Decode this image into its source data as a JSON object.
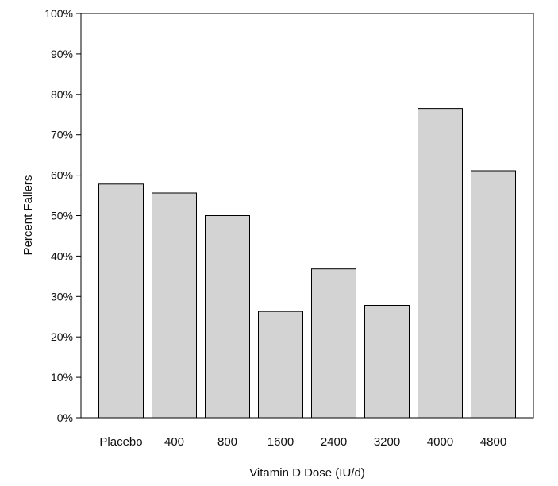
{
  "chart_data": {
    "type": "bar",
    "title": "",
    "xlabel": "Vitamin D Dose (IU/d)",
    "ylabel": "Percent Fallers",
    "categories": [
      "Placebo",
      "400",
      "800",
      "1600",
      "2400",
      "3200",
      "4000",
      "4800"
    ],
    "values": [
      57.8,
      55.6,
      50.0,
      26.3,
      36.8,
      27.8,
      76.5,
      61.1
    ],
    "value_unit": "%",
    "ylim": [
      0,
      100
    ],
    "yticks": [
      "0%",
      "10%",
      "20%",
      "30%",
      "40%",
      "50%",
      "60%",
      "70%",
      "80%",
      "90%",
      "100%"
    ],
    "grid": false,
    "legend": "none",
    "colors": {
      "bar_fill": "#d3d3d3",
      "bar_stroke": "#000000",
      "axis": "#000000",
      "background": "#ffffff"
    }
  }
}
